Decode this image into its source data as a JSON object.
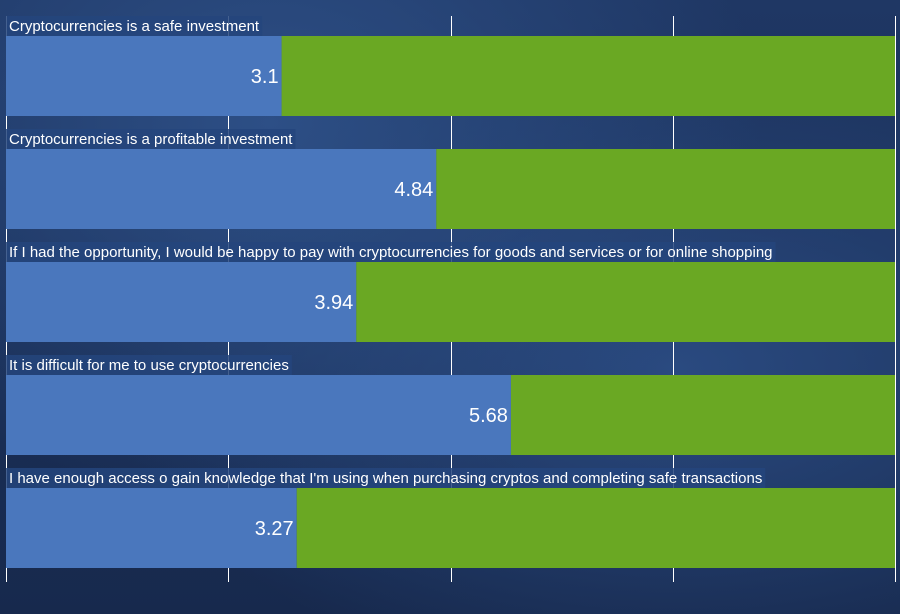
{
  "chart_data": {
    "type": "bar",
    "orientation": "horizontal",
    "stacked": true,
    "categories": [
      "Cryptocurrencies is a safe investment",
      "Cryptocurrencies is a profitable investment",
      "If I had the opportunity, I would be happy to pay with cryptocurrencies for goods and services or for online shopping",
      "It is difficult for me to use cryptocurrencies",
      "I have enough access o gain knowledge that I'm using when purchasing cryptos and completing safe transactions"
    ],
    "series": [
      {
        "values": [
          3.1,
          4.84,
          3.94,
          5.68,
          3.27
        ],
        "color": "#4a77bd",
        "value_labels": [
          "3.1",
          "4.84",
          "3.94",
          "5.68",
          "3.27"
        ]
      },
      {
        "values": [
          6.9,
          5.16,
          6.06,
          4.32,
          6.73
        ],
        "color": "#6aa823"
      }
    ],
    "xlim": [
      0,
      10
    ],
    "grid": true,
    "gridline_color": "#ffffff"
  }
}
